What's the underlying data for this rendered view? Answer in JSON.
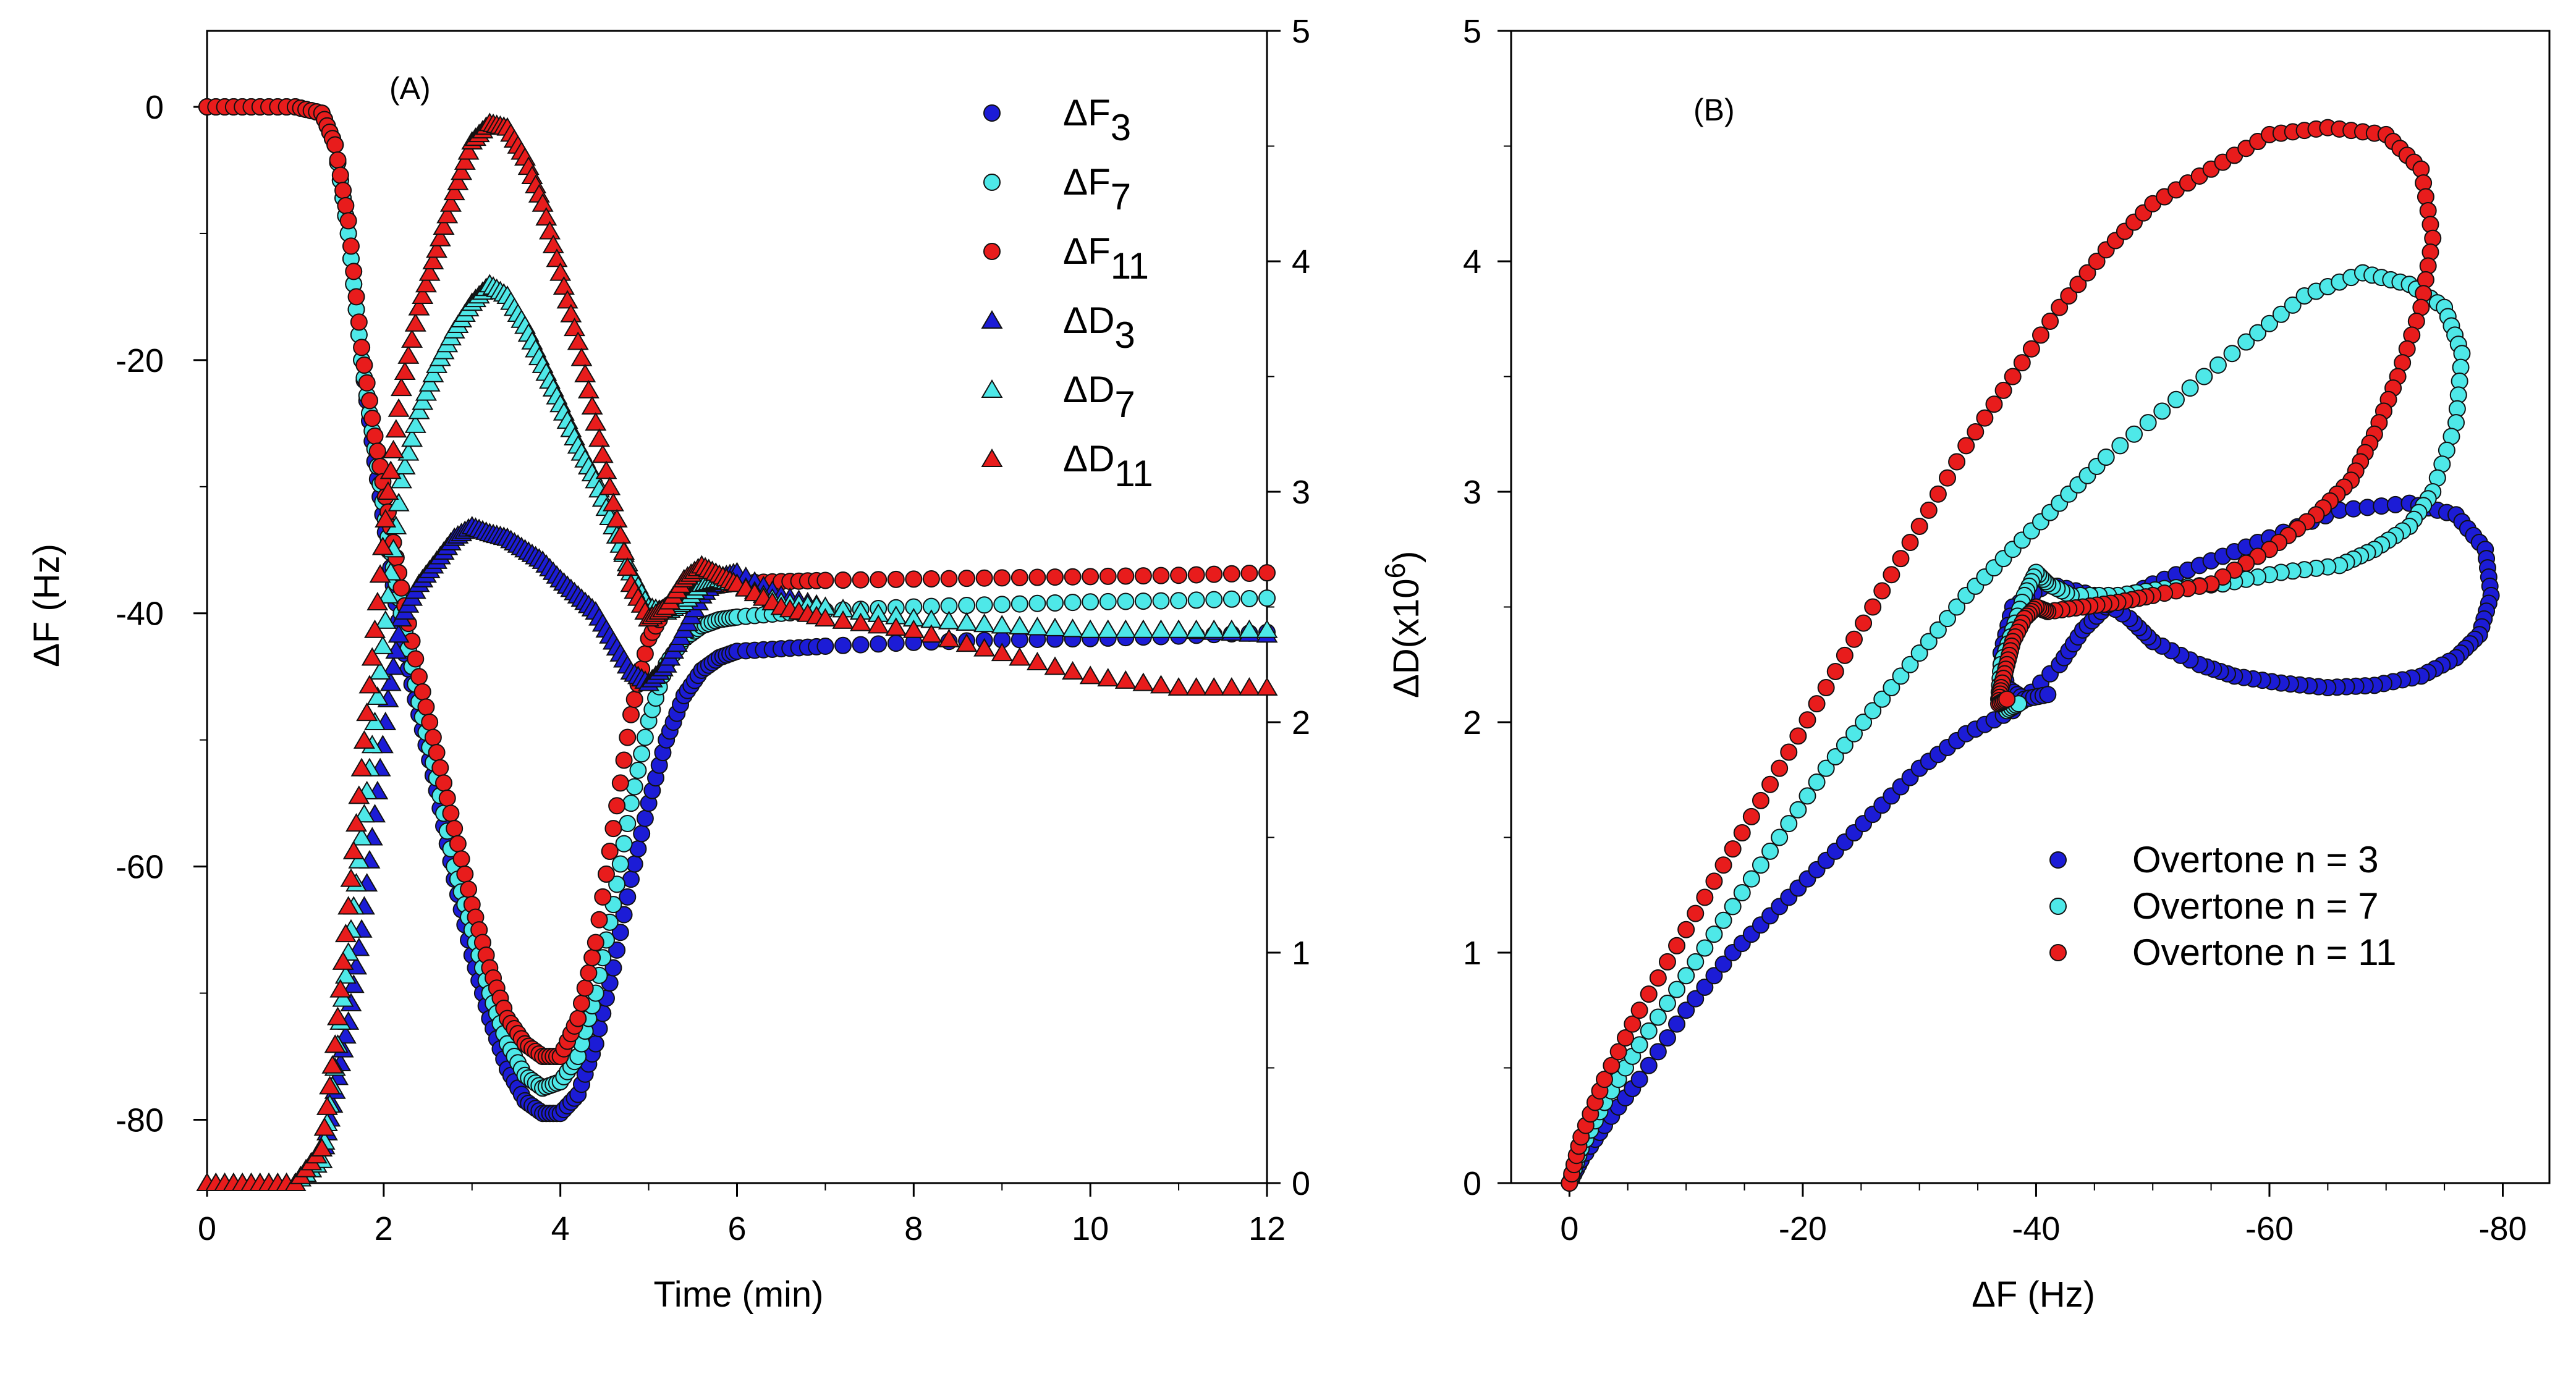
{
  "chart_data": [
    {
      "panel_label": "(A)",
      "type": "scatter",
      "xlabel": "Time (min)",
      "ylabel_left": "ΔF (Hz)",
      "ylabel_right": "",
      "xlim": [
        0,
        12
      ],
      "ylim_left": [
        -85,
        6
      ],
      "ylim_right": [
        0,
        5
      ],
      "x_ticks": [
        "0",
        "2",
        "4",
        "6",
        "8",
        "10",
        "12"
      ],
      "y_left_ticks": [
        "0",
        "-20",
        "-40",
        "-60",
        "-80"
      ],
      "y_right_ticks": [
        "0",
        "1",
        "2",
        "3",
        "4",
        "5"
      ],
      "grid": false,
      "legend_position": "top-right",
      "series": [
        {
          "name": "ΔF",
          "sub": "3",
          "axis": "left",
          "marker": "circle",
          "color": "#1c1cd6",
          "x": [
            0,
            0.5,
            1.0,
            1.3,
            1.45,
            1.6,
            1.75,
            1.9,
            2.05,
            2.2,
            2.4,
            2.6,
            2.8,
            3.0,
            3.2,
            3.4,
            3.6,
            3.8,
            4.0,
            4.2,
            4.4,
            4.6,
            4.8,
            5.0,
            5.2,
            5.4,
            5.6,
            5.8,
            6.0,
            6.5,
            7,
            8,
            9,
            10,
            11,
            12
          ],
          "y": [
            0,
            0,
            0,
            -0.5,
            -3,
            -10,
            -20,
            -28,
            -35,
            -42,
            -48,
            -54,
            -61,
            -67,
            -72,
            -76,
            -78.5,
            -79.5,
            -79.5,
            -78,
            -74,
            -68,
            -61,
            -55,
            -50,
            -46.5,
            -44.5,
            -43.5,
            -43,
            -42.8,
            -42.6,
            -42.3,
            -42.1,
            -42,
            -41.8,
            -41.5
          ]
        },
        {
          "name": "ΔF",
          "sub": "7",
          "axis": "left",
          "marker": "circle",
          "color": "#4ee8e8",
          "x": [
            0,
            0.5,
            1.0,
            1.3,
            1.45,
            1.6,
            1.75,
            1.9,
            2.05,
            2.2,
            2.4,
            2.6,
            2.8,
            3.0,
            3.2,
            3.4,
            3.6,
            3.8,
            4.0,
            4.2,
            4.4,
            4.6,
            4.8,
            5.0,
            5.2,
            5.4,
            5.6,
            5.8,
            6.0,
            6.5,
            7,
            8,
            9,
            10,
            11,
            12
          ],
          "y": [
            0,
            0,
            0,
            -0.5,
            -3,
            -10,
            -20,
            -27,
            -34,
            -40,
            -47,
            -53,
            -60,
            -65,
            -70,
            -74,
            -76.5,
            -77.5,
            -77,
            -75,
            -70,
            -63,
            -55,
            -48.5,
            -44,
            -42,
            -41,
            -40.5,
            -40.3,
            -40,
            -39.8,
            -39.5,
            -39.3,
            -39.1,
            -39,
            -38.8
          ]
        },
        {
          "name": "ΔF",
          "sub": "11",
          "axis": "left",
          "marker": "circle",
          "color": "#e81c1c",
          "x": [
            0,
            0.5,
            1.0,
            1.3,
            1.45,
            1.6,
            1.75,
            1.9,
            2.05,
            2.2,
            2.4,
            2.6,
            2.8,
            3.0,
            3.2,
            3.4,
            3.6,
            3.8,
            4.0,
            4.2,
            4.4,
            4.6,
            4.8,
            5.0,
            5.2,
            5.4,
            5.6,
            5.8,
            6.0,
            6.5,
            7,
            8,
            9,
            10,
            11,
            12
          ],
          "y": [
            0,
            0,
            0,
            -0.5,
            -3,
            -9,
            -19,
            -26,
            -32,
            -38,
            -45,
            -51,
            -57,
            -63,
            -68,
            -72,
            -74,
            -75,
            -75,
            -72,
            -66,
            -57,
            -48,
            -42,
            -39.5,
            -38.5,
            -38,
            -37.8,
            -37.6,
            -37.5,
            -37.4,
            -37.3,
            -37.2,
            -37.1,
            -37,
            -36.8
          ]
        },
        {
          "name": "ΔD",
          "sub": "3",
          "axis": "right",
          "marker": "triangle",
          "color": "#1c1cd6",
          "x": [
            0,
            0.5,
            1.0,
            1.3,
            1.45,
            1.6,
            1.75,
            1.9,
            2.05,
            2.2,
            2.4,
            2.6,
            2.8,
            3.0,
            3.2,
            3.4,
            3.6,
            3.8,
            4.0,
            4.2,
            4.4,
            4.6,
            4.8,
            5.0,
            5.2,
            5.4,
            5.6,
            5.8,
            6.0,
            6.5,
            7,
            8,
            9,
            10,
            11,
            12
          ],
          "y": [
            0,
            0,
            0,
            0.1,
            0.4,
            0.7,
            1.1,
            1.6,
            2.1,
            2.45,
            2.6,
            2.7,
            2.8,
            2.85,
            2.82,
            2.8,
            2.75,
            2.7,
            2.62,
            2.55,
            2.48,
            2.35,
            2.22,
            2.17,
            2.25,
            2.4,
            2.55,
            2.63,
            2.65,
            2.55,
            2.5,
            2.45,
            2.42,
            2.4,
            2.4,
            2.38
          ]
        },
        {
          "name": "ΔD",
          "sub": "7",
          "axis": "right",
          "marker": "triangle",
          "color": "#4ee8e8",
          "x": [
            0,
            0.5,
            1.0,
            1.3,
            1.45,
            1.6,
            1.75,
            1.9,
            2.05,
            2.2,
            2.4,
            2.6,
            2.8,
            3.0,
            3.2,
            3.4,
            3.6,
            3.8,
            4.0,
            4.2,
            4.4,
            4.6,
            4.8,
            5.0,
            5.2,
            5.4,
            5.6,
            5.8,
            6.0,
            6.5,
            7,
            8,
            9,
            10,
            11,
            12
          ],
          "y": [
            0,
            0,
            0,
            0.1,
            0.5,
            1.0,
            1.5,
            2.0,
            2.55,
            3.05,
            3.35,
            3.55,
            3.7,
            3.82,
            3.9,
            3.85,
            3.72,
            3.55,
            3.38,
            3.2,
            3.05,
            2.85,
            2.65,
            2.5,
            2.48,
            2.52,
            2.6,
            2.62,
            2.6,
            2.52,
            2.5,
            2.45,
            2.42,
            2.4,
            2.4,
            2.4
          ]
        },
        {
          "name": "ΔD",
          "sub": "11",
          "axis": "right",
          "marker": "triangle",
          "color": "#e81c1c",
          "x": [
            0,
            0.5,
            1.0,
            1.3,
            1.45,
            1.6,
            1.75,
            1.9,
            2.05,
            2.2,
            2.4,
            2.6,
            2.8,
            3.0,
            3.2,
            3.4,
            3.6,
            3.8,
            4.0,
            4.2,
            4.4,
            4.6,
            4.8,
            5.0,
            5.2,
            5.4,
            5.6,
            5.8,
            6.0,
            6.5,
            7,
            8,
            9,
            10,
            11,
            12
          ],
          "y": [
            0,
            0,
            0,
            0.15,
            0.6,
            1.2,
            1.8,
            2.4,
            3.0,
            3.45,
            3.8,
            4.05,
            4.3,
            4.52,
            4.6,
            4.58,
            4.45,
            4.25,
            3.95,
            3.65,
            3.3,
            2.95,
            2.6,
            2.45,
            2.5,
            2.62,
            2.68,
            2.64,
            2.6,
            2.5,
            2.45,
            2.4,
            2.3,
            2.2,
            2.15,
            2.15
          ]
        }
      ]
    },
    {
      "panel_label": "(B)",
      "type": "scatter",
      "xlabel": "ΔF (Hz)",
      "ylabel": "ΔD(x10",
      "ylabel_sup": "6",
      "ylabel_close": ")",
      "xlim": [
        5,
        -84
      ],
      "ylim": [
        0,
        5
      ],
      "x_ticks": [
        "0",
        "-20",
        "-40",
        "-60",
        "-80"
      ],
      "y_ticks": [
        "0",
        "1",
        "2",
        "3",
        "4",
        "5"
      ],
      "grid": false,
      "legend_position": "bottom-right",
      "series": [
        {
          "name": "Overtone n = 3",
          "marker": "circle",
          "color": "#1c1cd6",
          "x": [
            0,
            -1,
            -3,
            -6,
            -10,
            -14,
            -18,
            -22,
            -26,
            -30,
            -34,
            -38,
            -42,
            -44,
            -46,
            -50,
            -55,
            -60,
            -66,
            -72,
            -76,
            -78.5,
            -79,
            -78,
            -76,
            -73,
            -69,
            -65,
            -61,
            -57,
            -54,
            -50,
            -48,
            -45,
            -41,
            -38,
            -37,
            -37.5,
            -39,
            -41
          ],
          "y": [
            0,
            0.1,
            0.25,
            0.45,
            0.75,
            1.0,
            1.2,
            1.4,
            1.6,
            1.8,
            1.95,
            2.05,
            2.25,
            2.4,
            2.5,
            2.6,
            2.7,
            2.8,
            2.92,
            2.95,
            2.9,
            2.75,
            2.55,
            2.38,
            2.28,
            2.2,
            2.16,
            2.15,
            2.17,
            2.2,
            2.25,
            2.35,
            2.45,
            2.55,
            2.6,
            2.5,
            2.3,
            2.15,
            2.1,
            2.12
          ]
        },
        {
          "name": "Overtone n = 7",
          "marker": "circle",
          "color": "#4ee8e8",
          "x": [
            0,
            -1,
            -3,
            -6,
            -10,
            -14,
            -18,
            -22,
            -26,
            -30,
            -34,
            -38,
            -42,
            -46,
            -52,
            -58,
            -63,
            -68,
            -72,
            -75,
            -76.5,
            -76,
            -74,
            -72,
            -69,
            -66,
            -61,
            -56,
            -51,
            -47,
            -43,
            -41,
            -40,
            -39,
            -38,
            -37,
            -36.8,
            -37.5,
            -38.5
          ],
          "y": [
            0,
            0.15,
            0.35,
            0.6,
            0.9,
            1.2,
            1.5,
            1.8,
            2.05,
            2.3,
            2.55,
            2.75,
            2.95,
            3.15,
            3.4,
            3.65,
            3.85,
            3.95,
            3.9,
            3.8,
            3.6,
            3.3,
            3.0,
            2.85,
            2.75,
            2.68,
            2.65,
            2.6,
            2.58,
            2.55,
            2.55,
            2.6,
            2.65,
            2.55,
            2.4,
            2.25,
            2.1,
            2.05,
            2.08
          ]
        },
        {
          "name": "Overtone n = 11",
          "marker": "circle",
          "color": "#e81c1c",
          "x": [
            0,
            -1,
            -3,
            -6,
            -10,
            -14,
            -18,
            -22,
            -26,
            -30,
            -34,
            -38,
            -42,
            -46,
            -50,
            -55,
            -60,
            -65,
            -70,
            -73,
            -74,
            -73,
            -71,
            -69,
            -67,
            -64,
            -60,
            -55,
            -50,
            -47,
            -44,
            -41,
            -40,
            -39,
            -38,
            -37.5,
            -37,
            -36.8,
            -37.5
          ],
          "y": [
            0,
            0.2,
            0.45,
            0.75,
            1.1,
            1.45,
            1.8,
            2.15,
            2.5,
            2.85,
            3.2,
            3.5,
            3.8,
            4.05,
            4.25,
            4.4,
            4.55,
            4.58,
            4.55,
            4.4,
            4.1,
            3.8,
            3.5,
            3.25,
            3.05,
            2.9,
            2.75,
            2.6,
            2.55,
            2.52,
            2.5,
            2.48,
            2.5,
            2.45,
            2.35,
            2.25,
            2.15,
            2.08,
            2.1
          ]
        }
      ]
    }
  ]
}
